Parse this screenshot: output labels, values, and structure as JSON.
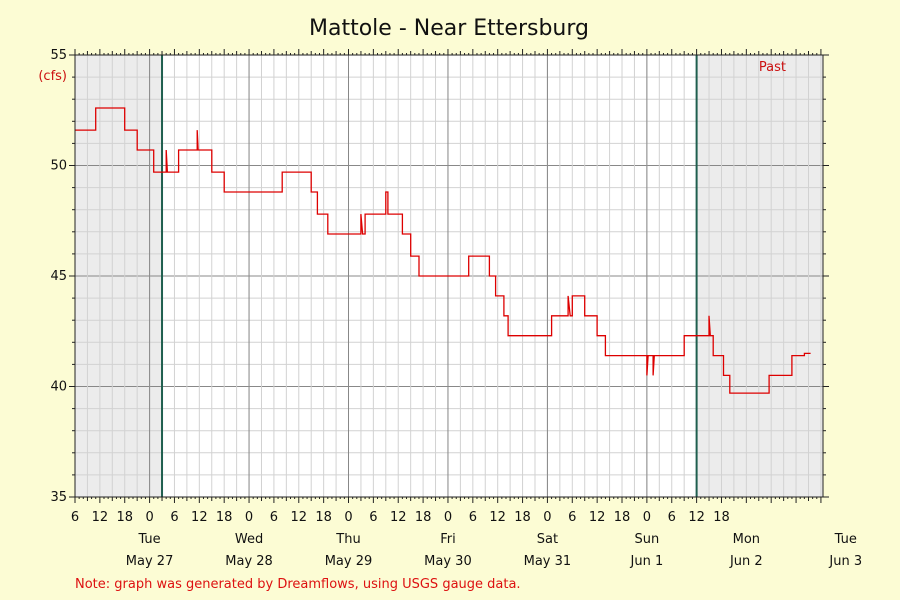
{
  "chart_data": {
    "type": "line",
    "title": "Mattole - Near Ettersburg",
    "unit_label": "(cfs)",
    "past_label": "Past",
    "note": "Note: graph was generated by Dreamflows, using USGS gauge data.",
    "ylim": [
      35,
      55
    ],
    "yticks": [
      35,
      40,
      45,
      50,
      55
    ],
    "x_range_hours": [
      0,
      156
    ],
    "past_marker_hours": 15,
    "now_marker_hours": 144,
    "hour_ticks": [
      {
        "h": 0,
        "label": "6"
      },
      {
        "h": 6,
        "label": "12"
      },
      {
        "h": 12,
        "label": "18"
      },
      {
        "h": 18,
        "label": "0"
      },
      {
        "h": 24,
        "label": "6"
      },
      {
        "h": 30,
        "label": "12"
      },
      {
        "h": 36,
        "label": "18"
      },
      {
        "h": 42,
        "label": "0"
      },
      {
        "h": 48,
        "label": "6"
      },
      {
        "h": 54,
        "label": "12"
      },
      {
        "h": 60,
        "label": "18"
      },
      {
        "h": 66,
        "label": "0"
      },
      {
        "h": 72,
        "label": "6"
      },
      {
        "h": 78,
        "label": "12"
      },
      {
        "h": 84,
        "label": "18"
      },
      {
        "h": 90,
        "label": "0"
      },
      {
        "h": 96,
        "label": "6"
      },
      {
        "h": 102,
        "label": "12"
      },
      {
        "h": 108,
        "label": "18"
      },
      {
        "h": 114,
        "label": "0"
      },
      {
        "h": 120,
        "label": "6"
      },
      {
        "h": 126,
        "label": "12"
      },
      {
        "h": 132,
        "label": "18"
      },
      {
        "h": 138,
        "label": "0"
      },
      {
        "h": 144,
        "label": "6"
      },
      {
        "h": 150,
        "label": "12"
      },
      {
        "h": 156,
        "label": "18"
      }
    ],
    "day_labels": [
      {
        "h": 6,
        "day": "Tue",
        "date": "May 27"
      },
      {
        "h": 30,
        "day": "Wed",
        "date": "May 28"
      },
      {
        "h": 54,
        "day": "Thu",
        "date": "May 29"
      },
      {
        "h": 78,
        "day": "Fri",
        "date": "May 30"
      },
      {
        "h": 102,
        "day": "Sat",
        "date": "May 31"
      },
      {
        "h": 126,
        "day": "Sun",
        "date": "Jun 1"
      },
      {
        "h": 150,
        "day": "Mon",
        "date": "Jun 2"
      },
      {
        "h": 174,
        "day": "Tue",
        "date": "Jun 3"
      }
    ],
    "series": [
      {
        "color": "#dd0000",
        "points": [
          [
            -6,
            51.6
          ],
          [
            -1,
            51.6
          ],
          [
            -1,
            52.6
          ],
          [
            6,
            52.6
          ],
          [
            6,
            51.6
          ],
          [
            9,
            51.6
          ],
          [
            9,
            50.7
          ],
          [
            13,
            50.7
          ],
          [
            13,
            49.7
          ],
          [
            16,
            49.7
          ],
          [
            16,
            50.7
          ],
          [
            16.3,
            49.7
          ],
          [
            19,
            49.7
          ],
          [
            19,
            50.7
          ],
          [
            22,
            50.7
          ],
          [
            23.5,
            50.7
          ],
          [
            23.5,
            51.6
          ],
          [
            23.7,
            50.7
          ],
          [
            27,
            50.7
          ],
          [
            27,
            49.7
          ],
          [
            30,
            49.7
          ],
          [
            30,
            48.8
          ],
          [
            44,
            48.8
          ],
          [
            44,
            49.7
          ],
          [
            51,
            49.7
          ],
          [
            51,
            48.8
          ],
          [
            52.5,
            48.8
          ],
          [
            52.5,
            47.8
          ],
          [
            55,
            47.8
          ],
          [
            55,
            46.9
          ],
          [
            63,
            46.9
          ],
          [
            63,
            47.8
          ],
          [
            63.4,
            46.9
          ],
          [
            64,
            46.9
          ],
          [
            64,
            47.8
          ],
          [
            69,
            47.8
          ],
          [
            69,
            48.8
          ],
          [
            69.5,
            48.8
          ],
          [
            69.5,
            47.8
          ],
          [
            73,
            47.8
          ],
          [
            73,
            46.9
          ],
          [
            75,
            46.9
          ],
          [
            75,
            45.9
          ],
          [
            77,
            45.9
          ],
          [
            77,
            45.0
          ],
          [
            89,
            45.0
          ],
          [
            89,
            45.9
          ],
          [
            94,
            45.9
          ],
          [
            94,
            45.0
          ],
          [
            95.5,
            45.0
          ],
          [
            95.5,
            44.1
          ],
          [
            97.5,
            44.1
          ],
          [
            97.5,
            43.2
          ],
          [
            98.5,
            43.2
          ],
          [
            98.5,
            42.3
          ],
          [
            109,
            42.3
          ],
          [
            109,
            43.2
          ],
          [
            113,
            43.2
          ],
          [
            113,
            44.1
          ],
          [
            113.5,
            43.2
          ],
          [
            114,
            43.2
          ],
          [
            114,
            44.1
          ],
          [
            117,
            44.1
          ],
          [
            117,
            43.2
          ],
          [
            120,
            43.2
          ],
          [
            120,
            42.3
          ],
          [
            122,
            42.3
          ],
          [
            122,
            41.4
          ],
          [
            132,
            41.4
          ],
          [
            132,
            40.5
          ],
          [
            132.3,
            41.4
          ],
          [
            133.5,
            41.4
          ],
          [
            133.5,
            40.5
          ],
          [
            133.8,
            41.4
          ],
          [
            141,
            41.4
          ],
          [
            141,
            42.3
          ],
          [
            147,
            42.3
          ],
          [
            147,
            43.2
          ],
          [
            147.3,
            42.3
          ],
          [
            148,
            42.3
          ],
          [
            148,
            41.4
          ],
          [
            150.5,
            41.4
          ],
          [
            150.5,
            40.5
          ],
          [
            152,
            40.5
          ],
          [
            152,
            39.7
          ],
          [
            161.5,
            39.7
          ],
          [
            161.5,
            40.5
          ],
          [
            167,
            40.5
          ],
          [
            167,
            41.4
          ],
          [
            170,
            41.4
          ],
          [
            170,
            41.5
          ],
          [
            171.5,
            41.5
          ]
        ]
      }
    ]
  }
}
